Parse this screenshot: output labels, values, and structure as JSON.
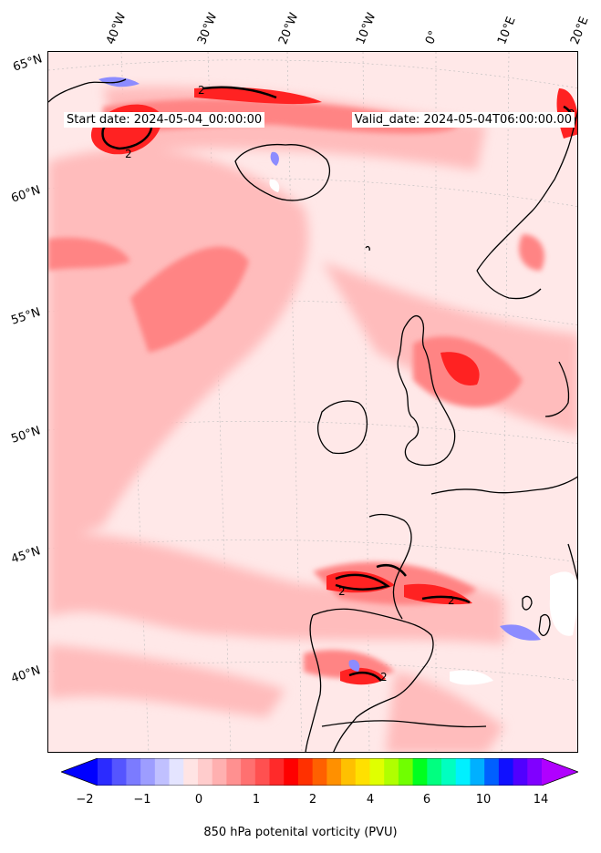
{
  "map": {
    "header_left": "Start date: 2024-05-04_00:00:00",
    "header_right": "Valid_date: 2024-05-04T06:00:00.00",
    "contour_label": "2",
    "lon_labels": [
      "40°W",
      "30°W",
      "20°W",
      "10°W",
      "0°",
      "10°E",
      "20°E"
    ],
    "lat_labels": [
      "65°N",
      "60°N",
      "55°N",
      "50°N",
      "45°N",
      "40°N"
    ],
    "colors": {
      "background_field": "#ffe8e8",
      "light_red": "#ffbcbc",
      "mid_red": "#ff8080",
      "strong_red": "#ff2020",
      "land_coast": "#000000",
      "negative_blue": "#7070ff"
    }
  },
  "colorbar": {
    "title": "850 hPa potenital vorticity (PVU)",
    "tick_labels": [
      "−2",
      "−1",
      "0",
      "1",
      "2",
      "4",
      "6",
      "10",
      "14"
    ],
    "colors": [
      "#0000ff",
      "#2b2bff",
      "#5555ff",
      "#7b7bff",
      "#9d9dff",
      "#c0c0ff",
      "#e4e4ff",
      "#ffe4e4",
      "#ffcccc",
      "#ffb0b0",
      "#ff9090",
      "#ff7070",
      "#ff5050",
      "#ff2a2a",
      "#ff0000",
      "#ff3000",
      "#ff6000",
      "#ff9000",
      "#ffc000",
      "#ffe000",
      "#e0ff00",
      "#b0ff00",
      "#70ff00",
      "#00ff20",
      "#00ff80",
      "#00ffc0",
      "#00f0ff",
      "#00b0ff",
      "#0060ff",
      "#1010ff",
      "#5000ff",
      "#8000ff",
      "#b000ff"
    ]
  }
}
